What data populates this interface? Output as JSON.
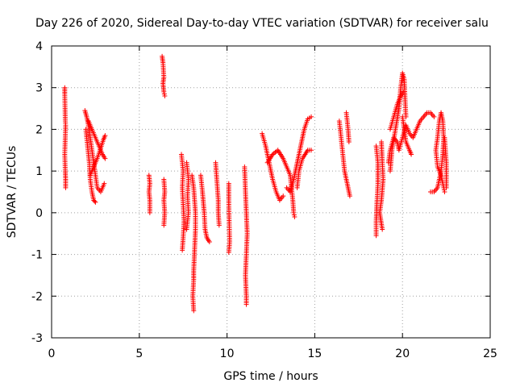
{
  "chart_data": {
    "type": "scatter",
    "title": "Day 226 of 2020, Sidereal Day-to-day VTEC variation (SDTVAR) for receiver salu",
    "xlabel": "GPS time / hours",
    "ylabel": "SDTVAR / TECUs",
    "xlim": [
      0,
      25
    ],
    "ylim": [
      -3,
      4
    ],
    "xticks": [
      "0",
      "5",
      "10",
      "15",
      "20",
      "25"
    ],
    "yticks": [
      "-3",
      "-2",
      "-1",
      "0",
      "1",
      "2",
      "3",
      "4"
    ],
    "grid": true,
    "marker": "plus",
    "color": "#ff0000",
    "segments": [
      [
        [
          0.75,
          3.0
        ],
        [
          0.75,
          2.85
        ],
        [
          0.78,
          2.2
        ],
        [
          0.8,
          2.1
        ],
        [
          0.75,
          1.4
        ],
        [
          0.78,
          1.0
        ],
        [
          0.8,
          0.8
        ],
        [
          0.8,
          0.6
        ]
      ],
      [
        [
          1.9,
          2.45
        ],
        [
          2.0,
          2.3
        ],
        [
          2.1,
          2.1
        ],
        [
          2.2,
          1.8
        ],
        [
          2.3,
          1.5
        ],
        [
          2.4,
          1.2
        ],
        [
          2.5,
          0.9
        ],
        [
          2.6,
          0.6
        ],
        [
          2.8,
          0.5
        ],
        [
          3.0,
          0.7
        ]
      ],
      [
        [
          1.95,
          2.0
        ],
        [
          2.05,
          1.6
        ],
        [
          2.15,
          1.2
        ],
        [
          2.2,
          0.8
        ],
        [
          2.3,
          0.5
        ],
        [
          2.4,
          0.3
        ],
        [
          2.5,
          0.25
        ]
      ],
      [
        [
          2.1,
          2.2
        ],
        [
          2.3,
          2.0
        ],
        [
          2.5,
          1.8
        ],
        [
          2.7,
          1.6
        ],
        [
          2.9,
          1.4
        ],
        [
          3.05,
          1.3
        ]
      ],
      [
        [
          2.2,
          0.9
        ],
        [
          2.4,
          1.1
        ],
        [
          2.6,
          1.3
        ],
        [
          2.8,
          1.55
        ],
        [
          2.95,
          1.75
        ],
        [
          3.05,
          1.85
        ]
      ],
      [
        [
          5.55,
          0.9
        ],
        [
          5.6,
          0.7
        ],
        [
          5.55,
          0.5
        ],
        [
          5.6,
          0.3
        ],
        [
          5.6,
          0.0
        ]
      ],
      [
        [
          6.3,
          3.75
        ],
        [
          6.35,
          3.6
        ],
        [
          6.4,
          3.25
        ],
        [
          6.35,
          3.1
        ],
        [
          6.4,
          2.9
        ],
        [
          6.45,
          2.8
        ]
      ],
      [
        [
          6.4,
          0.8
        ],
        [
          6.45,
          0.5
        ],
        [
          6.4,
          0.3
        ],
        [
          6.45,
          0.0
        ],
        [
          6.4,
          -0.3
        ]
      ],
      [
        [
          7.4,
          1.4
        ],
        [
          7.5,
          1.0
        ],
        [
          7.45,
          0.6
        ],
        [
          7.5,
          0.2
        ],
        [
          7.55,
          -0.2
        ],
        [
          7.5,
          -0.6
        ],
        [
          7.45,
          -0.9
        ]
      ],
      [
        [
          7.7,
          1.2
        ],
        [
          7.8,
          0.8
        ],
        [
          7.75,
          0.4
        ],
        [
          7.8,
          0.0
        ],
        [
          7.7,
          -0.4
        ]
      ],
      [
        [
          8.0,
          0.9
        ],
        [
          8.1,
          0.6
        ],
        [
          8.15,
          0.3
        ],
        [
          8.2,
          0.0
        ],
        [
          8.2,
          -0.4
        ],
        [
          8.15,
          -0.9
        ],
        [
          8.1,
          -1.4
        ],
        [
          8.1,
          -1.6
        ],
        [
          8.05,
          -2.0
        ],
        [
          8.1,
          -2.35
        ]
      ],
      [
        [
          8.5,
          0.9
        ],
        [
          8.6,
          0.5
        ],
        [
          8.7,
          0.0
        ],
        [
          8.75,
          -0.4
        ],
        [
          8.85,
          -0.6
        ],
        [
          9.0,
          -0.7
        ]
      ],
      [
        [
          9.35,
          1.2
        ],
        [
          9.4,
          0.9
        ],
        [
          9.45,
          0.6
        ],
        [
          9.5,
          0.3
        ],
        [
          9.5,
          0.0
        ],
        [
          9.55,
          -0.3
        ]
      ],
      [
        [
          10.1,
          0.7
        ],
        [
          10.1,
          0.2
        ],
        [
          10.15,
          -0.7
        ],
        [
          10.1,
          -0.95
        ]
      ],
      [
        [
          11.0,
          1.1
        ],
        [
          11.05,
          0.5
        ],
        [
          11.1,
          0.0
        ],
        [
          11.15,
          -0.5
        ],
        [
          11.1,
          -1.0
        ],
        [
          11.05,
          -1.5
        ],
        [
          11.1,
          -2.0
        ],
        [
          11.1,
          -2.2
        ]
      ],
      [
        [
          12.0,
          1.9
        ],
        [
          12.2,
          1.6
        ],
        [
          12.4,
          1.2
        ],
        [
          12.6,
          0.8
        ],
        [
          12.8,
          0.5
        ],
        [
          13.0,
          0.3
        ],
        [
          13.2,
          0.4
        ]
      ],
      [
        [
          12.3,
          1.2
        ],
        [
          12.6,
          1.4
        ],
        [
          12.9,
          1.5
        ],
        [
          13.2,
          1.3
        ],
        [
          13.4,
          1.1
        ],
        [
          13.6,
          0.9
        ],
        [
          13.75,
          0.3
        ],
        [
          13.8,
          0.0
        ],
        [
          13.85,
          -0.1
        ]
      ],
      [
        [
          13.4,
          0.6
        ],
        [
          13.6,
          0.5
        ],
        [
          13.8,
          0.8
        ],
        [
          14.0,
          1.2
        ],
        [
          14.2,
          1.6
        ],
        [
          14.4,
          2.0
        ],
        [
          14.6,
          2.25
        ],
        [
          14.8,
          2.3
        ]
      ],
      [
        [
          14.0,
          0.6
        ],
        [
          14.1,
          1.0
        ],
        [
          14.3,
          1.3
        ],
        [
          14.6,
          1.5
        ],
        [
          14.8,
          1.5
        ]
      ],
      [
        [
          16.4,
          2.2
        ],
        [
          16.5,
          1.8
        ],
        [
          16.6,
          1.4
        ],
        [
          16.7,
          1.0
        ],
        [
          16.9,
          0.6
        ],
        [
          17.0,
          0.4
        ]
      ],
      [
        [
          16.8,
          2.4
        ],
        [
          16.9,
          2.0
        ],
        [
          16.95,
          1.7
        ]
      ],
      [
        [
          18.5,
          1.6
        ],
        [
          18.6,
          1.2
        ],
        [
          18.6,
          0.7
        ],
        [
          18.55,
          0.3
        ],
        [
          18.5,
          -0.2
        ],
        [
          18.5,
          -0.55
        ]
      ],
      [
        [
          18.8,
          1.7
        ],
        [
          18.85,
          1.2
        ],
        [
          18.9,
          0.8
        ],
        [
          18.8,
          0.3
        ],
        [
          18.7,
          0.0
        ],
        [
          18.85,
          -0.4
        ]
      ],
      [
        [
          19.3,
          1.0
        ],
        [
          19.4,
          1.5
        ],
        [
          19.6,
          2.0
        ],
        [
          19.8,
          2.5
        ],
        [
          19.9,
          3.0
        ],
        [
          20.0,
          3.35
        ],
        [
          20.1,
          3.2
        ],
        [
          20.15,
          2.7
        ],
        [
          20.2,
          2.3
        ]
      ],
      [
        [
          19.3,
          2.0
        ],
        [
          19.5,
          2.3
        ],
        [
          19.7,
          2.6
        ],
        [
          19.9,
          2.8
        ],
        [
          20.05,
          2.9
        ]
      ],
      [
        [
          19.2,
          1.2
        ],
        [
          19.3,
          1.5
        ],
        [
          19.5,
          1.8
        ],
        [
          19.7,
          1.7
        ],
        [
          19.8,
          1.5
        ],
        [
          20.0,
          1.8
        ],
        [
          20.2,
          2.1
        ],
        [
          20.4,
          1.9
        ],
        [
          20.6,
          1.8
        ],
        [
          20.8,
          2.0
        ],
        [
          21.0,
          2.2
        ],
        [
          21.2,
          2.3
        ],
        [
          21.4,
          2.4
        ],
        [
          21.6,
          2.4
        ],
        [
          21.8,
          2.3
        ]
      ],
      [
        [
          20.0,
          2.3
        ],
        [
          20.1,
          2.0
        ],
        [
          20.2,
          1.7
        ],
        [
          20.4,
          1.5
        ],
        [
          20.5,
          1.4
        ]
      ],
      [
        [
          21.6,
          0.5
        ],
        [
          21.8,
          0.5
        ],
        [
          22.0,
          0.6
        ],
        [
          22.2,
          1.0
        ],
        [
          22.3,
          1.4
        ],
        [
          22.35,
          1.8
        ],
        [
          22.3,
          2.2
        ],
        [
          22.2,
          2.4
        ],
        [
          22.1,
          2.2
        ],
        [
          22.0,
          1.8
        ],
        [
          21.9,
          1.5
        ],
        [
          22.0,
          1.1
        ],
        [
          22.2,
          0.9
        ],
        [
          22.35,
          0.6
        ],
        [
          22.4,
          0.5
        ]
      ],
      [
        [
          22.4,
          1.8
        ],
        [
          22.5,
          1.2
        ],
        [
          22.5,
          0.9
        ],
        [
          22.5,
          0.6
        ]
      ]
    ]
  }
}
